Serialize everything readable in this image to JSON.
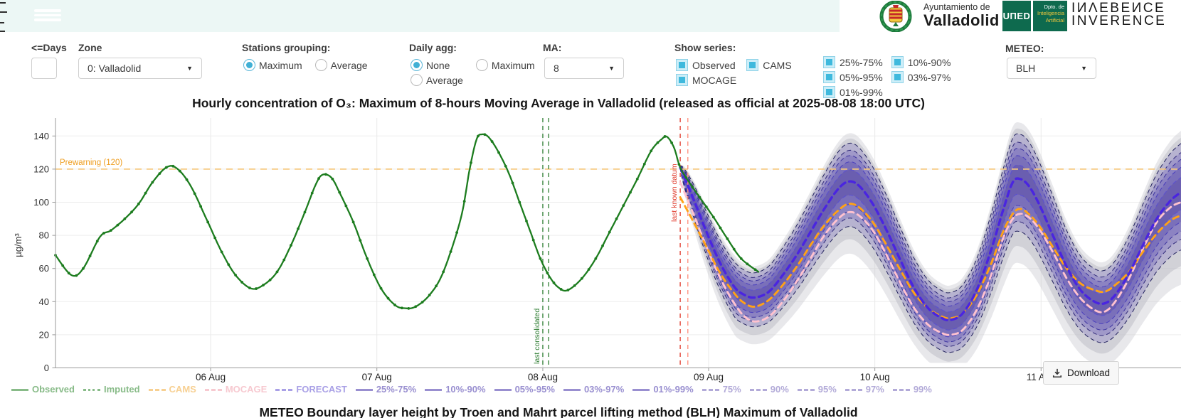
{
  "branding": {
    "ayuntamiento_line1": "Ayuntamiento de",
    "ayuntamiento_line2": "Valladolid",
    "uned_logo": "UΠED",
    "dpto_lines": [
      "Dpto. de",
      "Inteligencia",
      "Artificial"
    ],
    "inverence_top": "IИΛEBEИCE",
    "inverence_bottom": "INVERENCE"
  },
  "controls": {
    "days": {
      "label": "<=Days",
      "value": "",
      "placeholder": ""
    },
    "zone": {
      "label": "Zone",
      "value": "0: Valladolid"
    },
    "stations_grouping": {
      "label": "Stations grouping:",
      "options": [
        "Maximum",
        "Average"
      ],
      "selected": "Maximum"
    },
    "daily_agg": {
      "label": "Daily agg:",
      "options": [
        "None",
        "Maximum",
        "Average"
      ],
      "selected": "None"
    },
    "ma": {
      "label": "MA:",
      "value": "8"
    },
    "show_series": {
      "label": "Show series:",
      "items": [
        {
          "label": "Observed",
          "checked": true
        },
        {
          "label": "CAMS",
          "checked": true
        },
        {
          "label": "MOCAGE",
          "checked": true
        }
      ]
    },
    "percentiles": {
      "items": [
        {
          "label": "25%-75%",
          "checked": true
        },
        {
          "label": "10%-90%",
          "checked": true
        },
        {
          "label": "05%-95%",
          "checked": true
        },
        {
          "label": "03%-97%",
          "checked": true
        },
        {
          "label": "01%-99%",
          "checked": true
        }
      ]
    },
    "meteo": {
      "label": "METEO:",
      "value": "BLH"
    }
  },
  "chart_data": {
    "type": "line",
    "title": "Hourly concentration of O₃: Maximum of 8-hours Moving Average in Valladolid (released as official at 2025-08-08 18:00 UTC)",
    "ylabel": "µg/m³",
    "ylim": [
      0,
      150
    ],
    "yticks": [
      0,
      20,
      40,
      60,
      80,
      100,
      120,
      140
    ],
    "x_unit": "hours, estimated, from plot start 05 Aug ~02:00 UTC",
    "x_range": [
      0,
      162.5
    ],
    "day_ticks": [
      {
        "t": 22.4,
        "label": "06 Aug"
      },
      {
        "t": 46.4,
        "label": "07 Aug"
      },
      {
        "t": 70.36,
        "label": "08 Aug"
      },
      {
        "t": 94.3,
        "label": "09 Aug"
      },
      {
        "t": 118.3,
        "label": "10 Aug"
      },
      {
        "t": 142.3,
        "label": "11 Aug"
      }
    ],
    "threshold": {
      "value": 120,
      "label": "Prewarning (120)",
      "color": "#f6c87e",
      "label_color": "#ee9d1f"
    },
    "vlines": [
      {
        "t": 70.36,
        "color": "#2e7d32",
        "label": "last consolidated",
        "label_pos": "bottom"
      },
      {
        "t": 71.2,
        "color": "#2e7d32",
        "label": "",
        "label_pos": "bottom"
      },
      {
        "t": 90.2,
        "color": "#e0392b",
        "label": "last known datum",
        "label_pos": "top"
      },
      {
        "t": 91.3,
        "color": "#ff8d7a",
        "label": "",
        "label_pos": "top"
      }
    ],
    "series": [
      {
        "name": "Observed",
        "color": "#1c7c1e",
        "style": "solid",
        "width": 2.3,
        "markers": true,
        "points": [
          [
            0,
            68
          ],
          [
            2.3,
            56
          ],
          [
            4,
            60
          ],
          [
            6.4,
            79
          ],
          [
            8,
            83
          ],
          [
            10,
            90
          ],
          [
            12,
            99
          ],
          [
            14,
            112
          ],
          [
            16,
            121
          ],
          [
            17.5,
            120.5
          ],
          [
            19.5,
            110
          ],
          [
            22,
            88
          ],
          [
            24,
            70
          ],
          [
            26,
            56
          ],
          [
            28.2,
            48
          ],
          [
            30,
            50
          ],
          [
            32,
            58
          ],
          [
            34,
            74
          ],
          [
            36,
            94
          ],
          [
            37.5,
            110
          ],
          [
            38.5,
            116.5
          ],
          [
            39.8,
            115
          ],
          [
            41,
            106
          ],
          [
            43,
            88
          ],
          [
            45,
            66
          ],
          [
            47,
            48
          ],
          [
            49,
            38
          ],
          [
            50.5,
            36
          ],
          [
            52,
            37
          ],
          [
            54,
            44
          ],
          [
            56,
            58
          ],
          [
            58.5,
            90
          ],
          [
            59.8,
            120
          ],
          [
            60.8,
            138
          ],
          [
            61.6,
            141
          ],
          [
            62.6,
            139
          ],
          [
            64,
            130
          ],
          [
            65.5,
            117
          ],
          [
            67,
            100
          ],
          [
            68.5,
            83
          ],
          [
            70,
            66
          ],
          [
            71.5,
            54
          ],
          [
            72.8,
            48
          ],
          [
            74,
            47
          ],
          [
            76,
            54
          ],
          [
            78,
            66
          ],
          [
            80,
            82
          ],
          [
            82,
            98
          ],
          [
            84,
            114
          ],
          [
            86,
            131
          ],
          [
            87.5,
            138
          ],
          [
            88.3,
            139.5
          ],
          [
            89.3,
            133
          ],
          [
            90.2,
            121
          ],
          [
            91.5,
            112
          ],
          [
            93,
            103
          ],
          [
            95,
            91
          ],
          [
            97,
            78
          ],
          [
            99,
            66
          ],
          [
            101.5,
            58
          ]
        ]
      },
      {
        "name": "FORECAST",
        "color": "#4a25e0",
        "style": "dashed",
        "width": 3.4,
        "markers": false,
        "points": [
          [
            90.2,
            121
          ],
          [
            92,
            103
          ],
          [
            94,
            82
          ],
          [
            96,
            63
          ],
          [
            98,
            49
          ],
          [
            99.5,
            44
          ],
          [
            101,
            42.5
          ],
          [
            103,
            46
          ],
          [
            105,
            56
          ],
          [
            107,
            68
          ],
          [
            109,
            82
          ],
          [
            111,
            96
          ],
          [
            113,
            108
          ],
          [
            114.5,
            112.5
          ],
          [
            116,
            110
          ],
          [
            118,
            99
          ],
          [
            120,
            83
          ],
          [
            122,
            65
          ],
          [
            124,
            48
          ],
          [
            126,
            36
          ],
          [
            128,
            30
          ],
          [
            129.3,
            29
          ],
          [
            131,
            33
          ],
          [
            133,
            47
          ],
          [
            135,
            70
          ],
          [
            136.8,
            95
          ],
          [
            138.2,
            112
          ],
          [
            139.3,
            114
          ],
          [
            140.5,
            110
          ],
          [
            142,
            99
          ],
          [
            144,
            80
          ],
          [
            146,
            61
          ],
          [
            148,
            47
          ],
          [
            150,
            40
          ],
          [
            151.5,
            39
          ],
          [
            153,
            44
          ],
          [
            155,
            57
          ],
          [
            157,
            74
          ],
          [
            159,
            90
          ],
          [
            161,
            101
          ],
          [
            162.5,
            106
          ]
        ]
      },
      {
        "name": "CAMS",
        "color": "#ffa216",
        "style": "dashed",
        "width": 2.9,
        "markers": false,
        "points": [
          [
            90.2,
            103
          ],
          [
            92,
            89
          ],
          [
            94,
            73
          ],
          [
            96,
            57
          ],
          [
            98,
            45
          ],
          [
            99.5,
            39
          ],
          [
            101,
            37
          ],
          [
            103,
            41
          ],
          [
            105,
            50
          ],
          [
            107,
            61
          ],
          [
            109,
            74
          ],
          [
            111,
            86
          ],
          [
            113,
            95
          ],
          [
            114.5,
            99
          ],
          [
            116,
            97
          ],
          [
            118,
            88
          ],
          [
            120,
            74
          ],
          [
            122,
            59
          ],
          [
            124,
            45
          ],
          [
            126,
            36
          ],
          [
            128,
            31
          ],
          [
            129.3,
            30
          ],
          [
            131,
            33
          ],
          [
            133,
            44
          ],
          [
            135,
            62
          ],
          [
            136.8,
            82
          ],
          [
            138.2,
            93
          ],
          [
            139.3,
            96
          ],
          [
            140.5,
            93
          ],
          [
            142,
            86
          ],
          [
            144,
            73
          ],
          [
            146,
            60
          ],
          [
            148,
            51
          ],
          [
            150,
            47
          ],
          [
            151.5,
            46
          ],
          [
            153,
            50
          ],
          [
            155,
            58
          ],
          [
            157,
            70
          ],
          [
            159,
            81
          ],
          [
            161,
            89
          ],
          [
            162.5,
            92
          ]
        ]
      },
      {
        "name": "MOCAGE",
        "color": "#ffc2cf",
        "style": "dashed",
        "width": 2.9,
        "markers": false,
        "points": [
          [
            90.2,
            112
          ],
          [
            92,
            94
          ],
          [
            94,
            73
          ],
          [
            96,
            54
          ],
          [
            98,
            39
          ],
          [
            99.5,
            31
          ],
          [
            101,
            28
          ],
          [
            103,
            31
          ],
          [
            105,
            40
          ],
          [
            107,
            52
          ],
          [
            109,
            66
          ],
          [
            111,
            80
          ],
          [
            113,
            90
          ],
          [
            114.5,
            94
          ],
          [
            116,
            92
          ],
          [
            118,
            83
          ],
          [
            120,
            68
          ],
          [
            122,
            51
          ],
          [
            124,
            36
          ],
          [
            126,
            26
          ],
          [
            128,
            21
          ],
          [
            129.3,
            20
          ],
          [
            131,
            23
          ],
          [
            133,
            35
          ],
          [
            135,
            55
          ],
          [
            136.8,
            78
          ],
          [
            138.2,
            90
          ],
          [
            139.3,
            93
          ],
          [
            140.5,
            91
          ],
          [
            142,
            84
          ],
          [
            144,
            70
          ],
          [
            146,
            54
          ],
          [
            148,
            42
          ],
          [
            150,
            35
          ],
          [
            151.5,
            34
          ],
          [
            153,
            40
          ],
          [
            155,
            54
          ],
          [
            157,
            72
          ],
          [
            159,
            88
          ],
          [
            161,
            97
          ],
          [
            162.5,
            100
          ]
        ]
      }
    ],
    "bands": {
      "around": "FORECAST",
      "labels": [
        "25%-75%",
        "10%-90%",
        "05%-95%",
        "03%-97%",
        "01%-99%"
      ],
      "halfwidths": [
        6.5,
        11,
        14.5,
        17.5,
        21.5
      ],
      "fills": [
        "rgba(101,88,172,0.75)",
        "rgba(112,100,180,0.62)",
        "rgba(124,113,187,0.55)",
        "rgba(138,128,194,0.5)",
        "rgba(150,142,200,0.45)"
      ],
      "edges": [
        "#5a4fd0",
        "#4a3fbd",
        "#3d34a0",
        "#312a7a",
        "#23235e"
      ]
    },
    "gray_quantiles": {
      "labels": [
        "75%",
        "90%",
        "95%",
        "97%",
        "99%"
      ],
      "fills": [
        "rgba(200,200,208,0.42)",
        "rgba(185,185,196,0.5)"
      ]
    },
    "legend": [
      {
        "label": "Observed",
        "color": "#88bb88",
        "dash": "solid"
      },
      {
        "label": "Imputed",
        "color": "#88bb88",
        "dash": "dotted"
      },
      {
        "label": "CAMS",
        "color": "#f7d092",
        "dash": "dashed"
      },
      {
        "label": "MOCAGE",
        "color": "#f7c9d0",
        "dash": "dashed"
      },
      {
        "label": "FORECAST",
        "color": "#a9a0e6",
        "dash": "dashed"
      },
      {
        "label": "25%-75%",
        "color": "#998fd0",
        "dash": "solid"
      },
      {
        "label": "10%-90%",
        "color": "#998fd0",
        "dash": "solid"
      },
      {
        "label": "05%-95%",
        "color": "#998fd0",
        "dash": "solid"
      },
      {
        "label": "03%-97%",
        "color": "#998fd0",
        "dash": "solid"
      },
      {
        "label": "01%-99%",
        "color": "#998fd0",
        "dash": "solid"
      },
      {
        "label": "75%",
        "color": "#b2aad8",
        "dash": "dashed"
      },
      {
        "label": "90%",
        "color": "#b2aad8",
        "dash": "dashed"
      },
      {
        "label": "95%",
        "color": "#b2aad8",
        "dash": "dashed"
      },
      {
        "label": "97%",
        "color": "#b2aad8",
        "dash": "dashed"
      },
      {
        "label": "99%",
        "color": "#b2aad8",
        "dash": "dashed"
      }
    ]
  },
  "footer": {
    "download_label": "Download",
    "next_chart_title": "METEO Boundary layer height by Troen and Mahrt parcel lifting method (BLH) Maximum of Valladolid"
  }
}
